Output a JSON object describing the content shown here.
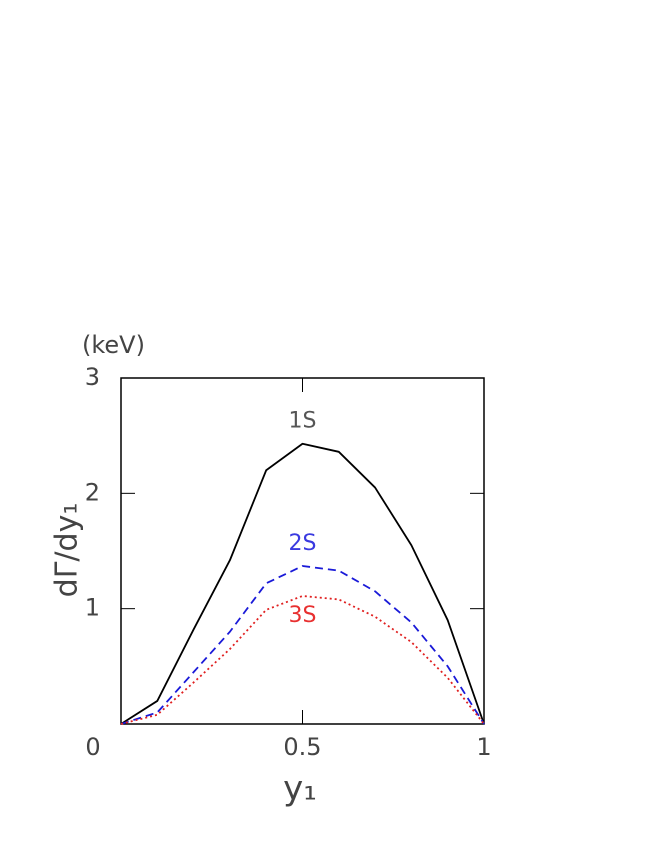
{
  "chart_data": {
    "type": "line",
    "x_label": "y₁",
    "y_label": "dΓ/dy₁",
    "y_unit": "(keV)",
    "x": [
      0,
      0.1,
      0.2,
      0.3,
      0.4,
      0.5,
      0.6,
      0.7,
      0.8,
      0.9,
      1
    ],
    "series": [
      {
        "name": "1S",
        "color": "#000000",
        "label_color": "#555555",
        "dash": "solid",
        "values": [
          0,
          0.2,
          0.82,
          1.42,
          2.2,
          2.43,
          2.36,
          2.05,
          1.55,
          0.9,
          0
        ]
      },
      {
        "name": "2S",
        "color": "#1a1ad8",
        "label_color": "#3a3ae0",
        "dash": "dashed",
        "values": [
          0,
          0.1,
          0.45,
          0.8,
          1.22,
          1.37,
          1.33,
          1.15,
          0.88,
          0.5,
          0
        ]
      },
      {
        "name": "3S",
        "color": "#e02020",
        "label_color": "#e83030",
        "dash": "dotted",
        "values": [
          0,
          0.08,
          0.36,
          0.65,
          0.99,
          1.11,
          1.08,
          0.93,
          0.71,
          0.4,
          0
        ]
      }
    ],
    "xlim": [
      0,
      1
    ],
    "ylim": [
      0,
      3
    ],
    "xticks": [
      0,
      0.5,
      1
    ],
    "yticks": [
      1,
      2,
      3
    ]
  }
}
